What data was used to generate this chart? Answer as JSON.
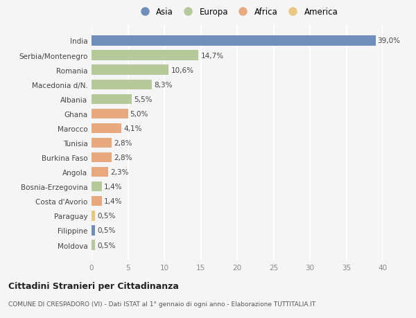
{
  "categories": [
    "India",
    "Serbia/Montenegro",
    "Romania",
    "Macedonia d/N.",
    "Albania",
    "Ghana",
    "Marocco",
    "Tunisia",
    "Burkina Faso",
    "Angola",
    "Bosnia-Erzegovina",
    "Costa d'Avorio",
    "Paraguay",
    "Filippine",
    "Moldova"
  ],
  "values": [
    39.0,
    14.7,
    10.6,
    8.3,
    5.5,
    5.0,
    4.1,
    2.8,
    2.8,
    2.3,
    1.4,
    1.4,
    0.5,
    0.5,
    0.5
  ],
  "labels": [
    "39,0%",
    "14,7%",
    "10,6%",
    "8,3%",
    "5,5%",
    "5,0%",
    "4,1%",
    "2,8%",
    "2,8%",
    "2,3%",
    "1,4%",
    "1,4%",
    "0,5%",
    "0,5%",
    "0,5%"
  ],
  "colors": [
    "#6f8fba",
    "#b5c99a",
    "#b5c99a",
    "#b5c99a",
    "#b5c99a",
    "#e8a97e",
    "#e8a97e",
    "#e8a97e",
    "#e8a97e",
    "#e8a97e",
    "#b5c99a",
    "#e8a97e",
    "#e8c87e",
    "#6f8fba",
    "#b5c99a"
  ],
  "legend_labels": [
    "Asia",
    "Europa",
    "Africa",
    "America"
  ],
  "legend_colors": [
    "#6f8fba",
    "#b5c99a",
    "#e8a97e",
    "#e8c87e"
  ],
  "title": "Cittadini Stranieri per Cittadinanza",
  "subtitle": "COMUNE DI CRESPADORO (VI) - Dati ISTAT al 1° gennaio di ogni anno - Elaborazione TUTTITALIA.IT",
  "xlim": [
    0,
    40
  ],
  "xticks": [
    0,
    5,
    10,
    15,
    20,
    25,
    30,
    35,
    40
  ],
  "background_color": "#f5f5f5",
  "grid_color": "#ffffff",
  "bar_height": 0.68
}
